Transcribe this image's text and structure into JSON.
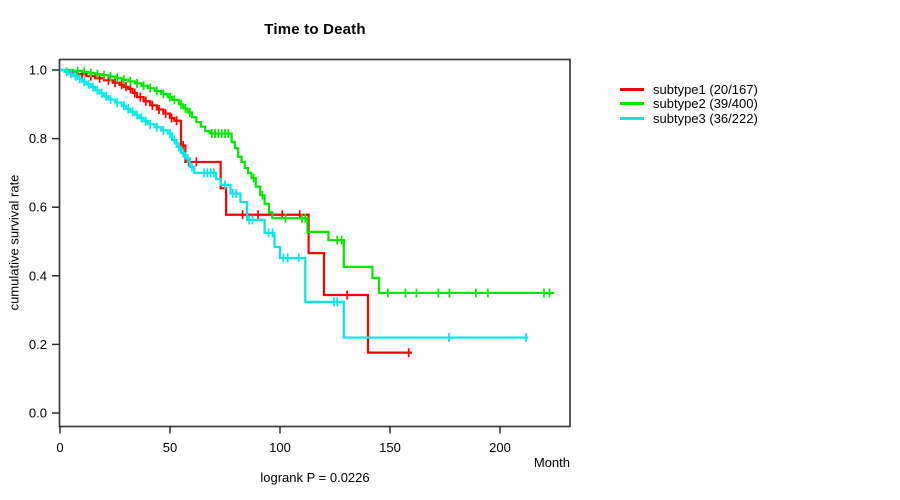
{
  "page": {
    "background": "#ffffff"
  },
  "chart_data": {
    "type": "line",
    "subtype": "kaplan-meier-step-curves",
    "title": "Time to Death",
    "xlabel": "Month",
    "ylabel": "cumulative survival rate",
    "annotation": "logrank P = 0.0226",
    "grid": false,
    "legend_position": "right-outside",
    "box_color": "#3c3c3c",
    "tick_color": "#2a2a2a",
    "text_color": "#000000",
    "x_axis": {
      "min": 0,
      "max": 232,
      "ticks": [
        {
          "value": 0,
          "label": "0"
        },
        {
          "value": 50,
          "label": "50"
        },
        {
          "value": 100,
          "label": "100"
        },
        {
          "value": 150,
          "label": "150"
        },
        {
          "value": 200,
          "label": "200"
        }
      ]
    },
    "y_axis": {
      "min": 0.0,
      "max": 1.0,
      "ticks": [
        {
          "value": 0.0,
          "label": "0.0"
        },
        {
          "value": 0.2,
          "label": "0.2"
        },
        {
          "value": 0.4,
          "label": "0.4"
        },
        {
          "value": 0.6,
          "label": "0.6"
        },
        {
          "value": 0.8,
          "label": "0.8"
        },
        {
          "value": 1.0,
          "label": "1.0"
        }
      ]
    },
    "series": [
      {
        "id": "subtype1",
        "name": "subtype1 (20/167)",
        "events": "20/167",
        "color": "#fe0000",
        "end_month": 160,
        "steps": [
          [
            0,
            1.0
          ],
          [
            3,
            0.994
          ],
          [
            8,
            0.988
          ],
          [
            12,
            0.982
          ],
          [
            16,
            0.976
          ],
          [
            20,
            0.97
          ],
          [
            24,
            0.963
          ],
          [
            27,
            0.957
          ],
          [
            29,
            0.951
          ],
          [
            31,
            0.945
          ],
          [
            33,
            0.933
          ],
          [
            35,
            0.921
          ],
          [
            38,
            0.909
          ],
          [
            41,
            0.897
          ],
          [
            44,
            0.885
          ],
          [
            47,
            0.873
          ],
          [
            50,
            0.86
          ],
          [
            52,
            0.852
          ],
          [
            55,
            0.78
          ],
          [
            57,
            0.732
          ],
          [
            73,
            0.655
          ],
          [
            75.5,
            0.578
          ],
          [
            113,
            0.466
          ],
          [
            120,
            0.344
          ],
          [
            140,
            0.176
          ]
        ],
        "censors": [
          [
            10,
            0.988
          ],
          [
            14,
            0.982
          ],
          [
            18,
            0.976
          ],
          [
            22,
            0.97
          ],
          [
            25,
            0.963
          ],
          [
            28,
            0.957
          ],
          [
            30,
            0.951
          ],
          [
            32,
            0.945
          ],
          [
            34,
            0.933
          ],
          [
            36.5,
            0.921
          ],
          [
            39,
            0.909
          ],
          [
            42,
            0.897
          ],
          [
            45,
            0.885
          ],
          [
            48,
            0.873
          ],
          [
            50.7,
            0.86
          ],
          [
            53,
            0.852
          ],
          [
            56,
            0.78
          ],
          [
            58.5,
            0.732
          ],
          [
            62,
            0.732
          ],
          [
            83,
            0.578
          ],
          [
            90,
            0.578
          ],
          [
            101,
            0.578
          ],
          [
            109,
            0.578
          ],
          [
            130.5,
            0.344
          ],
          [
            158.5,
            0.176
          ]
        ]
      },
      {
        "id": "subtype2",
        "name": "subtype2 (39/400)",
        "events": "39/400",
        "color": "#00e800",
        "end_month": 224.6,
        "steps": [
          [
            0,
            1.0
          ],
          [
            6,
            0.997
          ],
          [
            10,
            0.994
          ],
          [
            13,
            0.991
          ],
          [
            16,
            0.988
          ],
          [
            19,
            0.985
          ],
          [
            22,
            0.981
          ],
          [
            25,
            0.977
          ],
          [
            28,
            0.972
          ],
          [
            31,
            0.967
          ],
          [
            34,
            0.961
          ],
          [
            37,
            0.954
          ],
          [
            40,
            0.947
          ],
          [
            43,
            0.939
          ],
          [
            46,
            0.93
          ],
          [
            49,
            0.921
          ],
          [
            51,
            0.913
          ],
          [
            54,
            0.9
          ],
          [
            56,
            0.888
          ],
          [
            58,
            0.876
          ],
          [
            60,
            0.862
          ],
          [
            62,
            0.848
          ],
          [
            64,
            0.835
          ],
          [
            66,
            0.822
          ],
          [
            68,
            0.815
          ],
          [
            78,
            0.79
          ],
          [
            79.5,
            0.772
          ],
          [
            81,
            0.747
          ],
          [
            82.5,
            0.732
          ],
          [
            84,
            0.714
          ],
          [
            85.5,
            0.7
          ],
          [
            87,
            0.685
          ],
          [
            89,
            0.66
          ],
          [
            91,
            0.635
          ],
          [
            93,
            0.61
          ],
          [
            95,
            0.585
          ],
          [
            96.5,
            0.568
          ],
          [
            112.5,
            0.528
          ],
          [
            122,
            0.504
          ],
          [
            129,
            0.426
          ],
          [
            142,
            0.394
          ],
          [
            145,
            0.35
          ]
        ],
        "censors": [
          [
            8,
            0.997
          ],
          [
            11,
            0.994
          ],
          [
            14,
            0.991
          ],
          [
            17,
            0.988
          ],
          [
            20,
            0.985
          ],
          [
            23,
            0.981
          ],
          [
            26,
            0.977
          ],
          [
            29,
            0.972
          ],
          [
            32,
            0.967
          ],
          [
            35,
            0.961
          ],
          [
            38,
            0.954
          ],
          [
            41,
            0.947
          ],
          [
            44,
            0.939
          ],
          [
            47,
            0.93
          ],
          [
            50,
            0.921
          ],
          [
            52,
            0.913
          ],
          [
            55,
            0.9
          ],
          [
            57,
            0.888
          ],
          [
            59,
            0.876
          ],
          [
            69,
            0.815
          ],
          [
            70.5,
            0.815
          ],
          [
            72,
            0.815
          ],
          [
            73.5,
            0.815
          ],
          [
            75,
            0.815
          ],
          [
            76.5,
            0.815
          ],
          [
            88,
            0.685
          ],
          [
            92,
            0.635
          ],
          [
            102.5,
            0.568
          ],
          [
            110,
            0.568
          ],
          [
            111.5,
            0.568
          ],
          [
            126,
            0.504
          ],
          [
            128,
            0.504
          ],
          [
            149,
            0.35
          ],
          [
            157,
            0.35
          ],
          [
            162,
            0.35
          ],
          [
            172,
            0.35
          ],
          [
            177,
            0.35
          ],
          [
            189,
            0.35
          ],
          [
            194.5,
            0.35
          ],
          [
            220,
            0.35
          ],
          [
            222.5,
            0.35
          ]
        ]
      },
      {
        "id": "subtype3",
        "name": "subtype3 (36/222)",
        "events": "36/222",
        "color": "#00e8e8",
        "end_month": 212.7,
        "steps": [
          [
            0,
            1.0
          ],
          [
            2,
            0.995
          ],
          [
            4,
            0.989
          ],
          [
            6,
            0.982
          ],
          [
            8,
            0.974
          ],
          [
            10,
            0.966
          ],
          [
            12,
            0.958
          ],
          [
            14,
            0.95
          ],
          [
            16,
            0.941
          ],
          [
            18,
            0.932
          ],
          [
            20,
            0.923
          ],
          [
            22,
            0.914
          ],
          [
            25,
            0.905
          ],
          [
            28,
            0.896
          ],
          [
            30,
            0.887
          ],
          [
            32,
            0.878
          ],
          [
            34,
            0.869
          ],
          [
            36,
            0.86
          ],
          [
            38,
            0.851
          ],
          [
            40,
            0.842
          ],
          [
            43,
            0.833
          ],
          [
            46,
            0.824
          ],
          [
            49,
            0.815
          ],
          [
            51,
            0.796
          ],
          [
            53,
            0.776
          ],
          [
            55,
            0.758
          ],
          [
            57,
            0.742
          ],
          [
            59,
            0.717
          ],
          [
            61,
            0.7
          ],
          [
            71,
            0.682
          ],
          [
            73,
            0.665
          ],
          [
            77.5,
            0.64
          ],
          [
            82,
            0.615
          ],
          [
            85,
            0.563
          ],
          [
            93,
            0.525
          ],
          [
            97.5,
            0.484
          ],
          [
            100,
            0.452
          ],
          [
            111.5,
            0.324
          ],
          [
            129,
            0.22
          ]
        ],
        "censors": [
          [
            3,
            0.995
          ],
          [
            5,
            0.989
          ],
          [
            7,
            0.982
          ],
          [
            9,
            0.974
          ],
          [
            11,
            0.966
          ],
          [
            13,
            0.958
          ],
          [
            15,
            0.95
          ],
          [
            17,
            0.941
          ],
          [
            19,
            0.932
          ],
          [
            21,
            0.923
          ],
          [
            23,
            0.914
          ],
          [
            26,
            0.905
          ],
          [
            29,
            0.896
          ],
          [
            31,
            0.887
          ],
          [
            33,
            0.878
          ],
          [
            35,
            0.869
          ],
          [
            37,
            0.86
          ],
          [
            39,
            0.851
          ],
          [
            41,
            0.842
          ],
          [
            44,
            0.833
          ],
          [
            47,
            0.824
          ],
          [
            50,
            0.815
          ],
          [
            52,
            0.796
          ],
          [
            54,
            0.776
          ],
          [
            56,
            0.758
          ],
          [
            58,
            0.742
          ],
          [
            60,
            0.717
          ],
          [
            65.5,
            0.7
          ],
          [
            67,
            0.7
          ],
          [
            68.5,
            0.7
          ],
          [
            70,
            0.7
          ],
          [
            75,
            0.665
          ],
          [
            78.5,
            0.64
          ],
          [
            80,
            0.64
          ],
          [
            86,
            0.563
          ],
          [
            87.5,
            0.563
          ],
          [
            94.8,
            0.525
          ],
          [
            96.6,
            0.525
          ],
          [
            101.5,
            0.452
          ],
          [
            103.5,
            0.452
          ],
          [
            108.5,
            0.452
          ],
          [
            124.5,
            0.324
          ],
          [
            126,
            0.324
          ],
          [
            176.8,
            0.22
          ],
          [
            211.8,
            0.22
          ]
        ]
      }
    ]
  }
}
